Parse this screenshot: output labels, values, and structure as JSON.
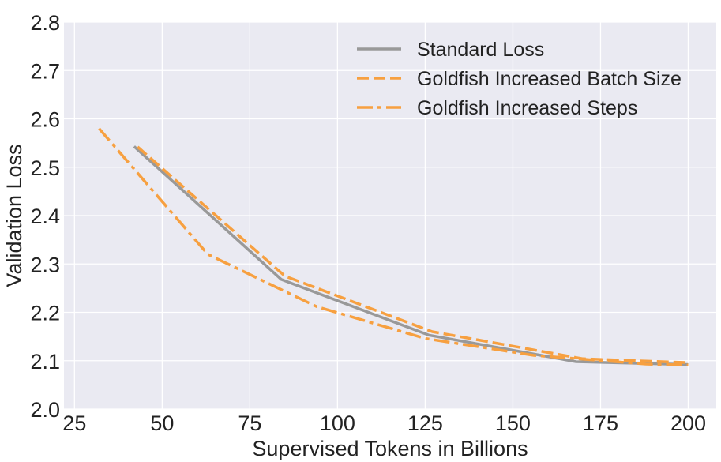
{
  "chart_data": {
    "type": "line",
    "title": "",
    "xlabel": "Supervised Tokens in Billions",
    "ylabel": "Validation Loss",
    "xlim": [
      22,
      208
    ],
    "ylim": [
      2.0,
      2.8
    ],
    "xticks": [
      25,
      50,
      75,
      100,
      125,
      150,
      175,
      200
    ],
    "yticks": [
      2.0,
      2.1,
      2.2,
      2.3,
      2.4,
      2.5,
      2.6,
      2.7,
      2.8
    ],
    "xtick_labels": [
      "25",
      "50",
      "75",
      "100",
      "125",
      "150",
      "175",
      "200"
    ],
    "ytick_labels": [
      "2.0",
      "2.1",
      "2.2",
      "2.3",
      "2.4",
      "2.5",
      "2.6",
      "2.7",
      "2.8"
    ],
    "grid": true,
    "legend_position": "top-right",
    "series": [
      {
        "name": "Standard Loss",
        "style": "solid",
        "color": "#999999",
        "x": [
          42,
          84,
          126,
          168,
          200
        ],
        "y": [
          2.543,
          2.268,
          2.153,
          2.098,
          2.092
        ]
      },
      {
        "name": "Goldfish Increased Batch Size",
        "style": "dashed",
        "color": "#F7A040",
        "x": [
          43,
          85,
          127,
          170,
          200
        ],
        "y": [
          2.542,
          2.275,
          2.16,
          2.104,
          2.096
        ]
      },
      {
        "name": "Goldfish Increased Steps",
        "style": "dashdot",
        "color": "#F7A040",
        "x": [
          32,
          63,
          94,
          125,
          156,
          188,
          200
        ],
        "y": [
          2.58,
          2.32,
          2.212,
          2.146,
          2.111,
          2.093,
          2.091
        ]
      }
    ]
  },
  "colors": {
    "plot_background": "#EAEAF2",
    "grid": "#FFFFFF",
    "standard": "#999999",
    "goldfish": "#F7A040"
  }
}
